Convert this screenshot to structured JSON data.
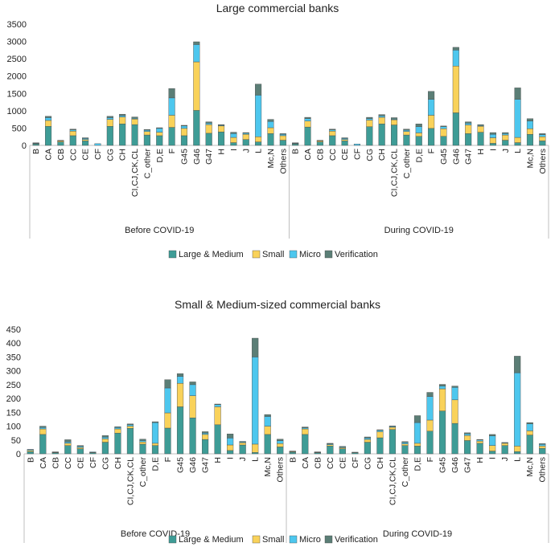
{
  "colors": {
    "large_medium": "#3E9C96",
    "small": "#F9D25A",
    "micro": "#4DC7EE",
    "verification": "#5B7E76"
  },
  "chart_data": [
    {
      "type": "bar",
      "stacked": true,
      "title": "Large commercial banks",
      "ylim": [
        0,
        3500
      ],
      "yticks": [
        0,
        500,
        1000,
        1500,
        2000,
        2500,
        3000,
        3500
      ],
      "categories": [
        "B",
        "CA",
        "CB",
        "CC",
        "CE",
        "CF",
        "CG",
        "CH",
        "CI,CJ,CK,CL",
        "C_other",
        "D,E",
        "F",
        "G45",
        "G46",
        "G47",
        "H",
        "I",
        "J",
        "L",
        "Mc,N",
        "Others"
      ],
      "groups": [
        "Before COVID-19",
        "During COVID-19"
      ],
      "legend": [
        "Large & Medium",
        "Small",
        "Micro",
        "Verification"
      ],
      "series": [
        {
          "name": "Large & Medium",
          "group": "Before COVID-19",
          "values": [
            40,
            550,
            100,
            280,
            130,
            0,
            550,
            620,
            600,
            300,
            280,
            520,
            280,
            1010,
            350,
            390,
            80,
            170,
            100,
            340,
            150
          ]
        },
        {
          "name": "Small",
          "group": "Before COVID-19",
          "values": [
            10,
            170,
            30,
            130,
            40,
            0,
            200,
            200,
            160,
            100,
            100,
            350,
            210,
            1400,
            250,
            170,
            150,
            150,
            150,
            170,
            130
          ]
        },
        {
          "name": "Micro",
          "group": "Before COVID-19",
          "values": [
            15,
            80,
            10,
            40,
            30,
            50,
            50,
            40,
            20,
            40,
            110,
            500,
            70,
            500,
            40,
            20,
            110,
            30,
            1200,
            180,
            40
          ]
        },
        {
          "name": "Verification",
          "group": "Before COVID-19",
          "values": [
            10,
            40,
            5,
            20,
            20,
            0,
            40,
            40,
            40,
            20,
            20,
            270,
            20,
            80,
            40,
            20,
            40,
            20,
            320,
            60,
            20
          ]
        },
        {
          "name": "Large & Medium",
          "group": "During COVID-19",
          "values": [
            40,
            530,
            100,
            280,
            130,
            0,
            540,
            620,
            590,
            300,
            260,
            490,
            260,
            940,
            340,
            380,
            60,
            150,
            80,
            320,
            130
          ]
        },
        {
          "name": "Small",
          "group": "During COVID-19",
          "values": [
            10,
            170,
            30,
            130,
            40,
            0,
            190,
            190,
            150,
            100,
            100,
            380,
            220,
            1350,
            250,
            170,
            160,
            150,
            150,
            160,
            120
          ]
        },
        {
          "name": "Micro",
          "group": "During COVID-19",
          "values": [
            15,
            70,
            10,
            40,
            30,
            40,
            40,
            40,
            20,
            40,
            180,
            460,
            60,
            460,
            50,
            20,
            100,
            40,
            1100,
            220,
            60
          ]
        },
        {
          "name": "Verification",
          "group": "During COVID-19",
          "values": [
            10,
            40,
            5,
            20,
            20,
            0,
            40,
            40,
            40,
            30,
            80,
            230,
            20,
            80,
            40,
            30,
            50,
            30,
            330,
            70,
            30
          ]
        }
      ]
    },
    {
      "type": "bar",
      "stacked": true,
      "title": "Small & Medium-sized commercial banks",
      "ylim": [
        0,
        450
      ],
      "yticks": [
        0,
        50,
        100,
        150,
        200,
        250,
        300,
        350,
        400,
        450
      ],
      "categories_before": [
        "B",
        "CA",
        "CB",
        "CC",
        "CE",
        "CF",
        "CG",
        "CH",
        "CI,CJ,CK,CL",
        "C_other",
        "D,E",
        "F",
        "G45",
        "G46",
        "G47",
        "H",
        "I",
        "J",
        "L",
        "Mc,N",
        "Others"
      ],
      "categories_during": [
        "B",
        "CA",
        "CB",
        "CC",
        "CE",
        "CF",
        "CG",
        "CH",
        "CI,CJ,CK,CL",
        "C_other",
        "D,E",
        "F",
        "G45",
        "G46",
        "G47",
        "H",
        "I",
        "J",
        "L",
        "Mc,N",
        "Others"
      ],
      "groups": [
        "Before COVID-19",
        "During COVID-19"
      ],
      "legend": [
        "Large & Medium",
        "Small",
        "Micro",
        "Verification"
      ],
      "series": [
        {
          "name": "Large & Medium",
          "group": "Before COVID-19",
          "values": [
            8,
            70,
            4,
            30,
            18,
            4,
            42,
            75,
            92,
            35,
            30,
            93,
            170,
            130,
            52,
            105,
            12,
            32,
            5,
            70,
            25
          ]
        },
        {
          "name": "Small",
          "group": "Before COVID-19",
          "values": [
            4,
            20,
            1,
            8,
            5,
            1,
            12,
            15,
            8,
            8,
            8,
            55,
            85,
            80,
            18,
            65,
            20,
            8,
            30,
            30,
            12
          ]
        },
        {
          "name": "Micro",
          "group": "Before COVID-19",
          "values": [
            3,
            5,
            1,
            5,
            4,
            2,
            6,
            5,
            5,
            5,
            75,
            90,
            25,
            40,
            5,
            8,
            25,
            3,
            315,
            35,
            10
          ]
        },
        {
          "name": "Verification",
          "group": "Before COVID-19",
          "values": [
            1,
            5,
            1,
            8,
            3,
            0,
            6,
            3,
            3,
            5,
            3,
            30,
            10,
            10,
            5,
            2,
            15,
            2,
            68,
            7,
            6
          ]
        },
        {
          "name": "Large & Medium",
          "group": "During COVID-19",
          "values": [
            6,
            70,
            4,
            28,
            18,
            4,
            42,
            58,
            88,
            30,
            28,
            82,
            155,
            110,
            48,
            38,
            10,
            30,
            8,
            68,
            20
          ]
        },
        {
          "name": "Small",
          "group": "During COVID-19",
          "values": [
            2,
            20,
            1,
            5,
            4,
            1,
            10,
            22,
            8,
            6,
            10,
            40,
            80,
            85,
            18,
            8,
            20,
            8,
            20,
            15,
            8
          ]
        },
        {
          "name": "Micro",
          "group": "During COVID-19",
          "values": [
            1,
            4,
            1,
            3,
            3,
            1,
            5,
            5,
            3,
            5,
            75,
            85,
            10,
            45,
            6,
            4,
            35,
            2,
            265,
            25,
            6
          ]
        },
        {
          "name": "Verification",
          "group": "During COVID-19",
          "values": [
            1,
            3,
            1,
            2,
            2,
            0,
            4,
            2,
            2,
            3,
            25,
            15,
            6,
            5,
            4,
            2,
            5,
            1,
            60,
            5,
            3
          ]
        }
      ]
    }
  ]
}
